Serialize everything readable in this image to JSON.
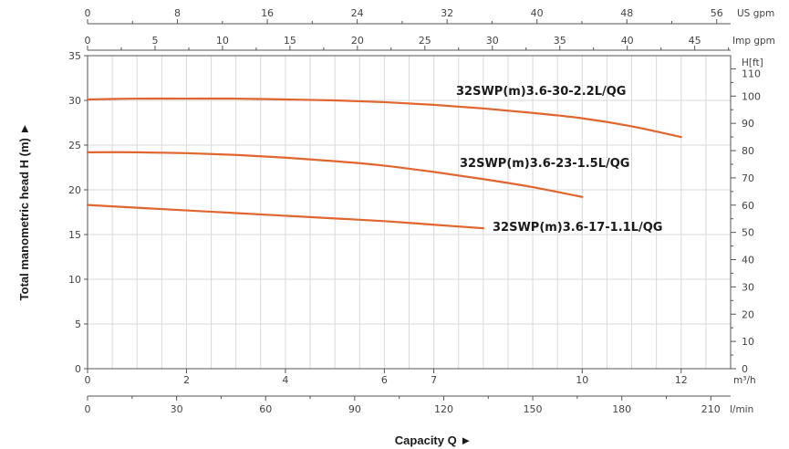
{
  "chart_data": {
    "type": "line",
    "xlabel": "Capacity Q ►",
    "ylabel": "Total manometric head H (m) ►",
    "xlim": [
      0,
      13
    ],
    "ylim": [
      0,
      35
    ],
    "grid": true,
    "x_unit": "m³/h",
    "y_unit_right": "H[ft]",
    "x_ticks": [
      0,
      2,
      4,
      6,
      7,
      10,
      12
    ],
    "y_ticks": [
      0,
      5,
      10,
      15,
      20,
      25,
      30,
      35
    ],
    "ft_ticks": [
      0,
      10,
      20,
      30,
      40,
      50,
      60,
      70,
      80,
      90,
      100,
      110
    ],
    "lmin_unit": "l/min",
    "lmin_ticks": [
      0,
      30,
      60,
      90,
      120,
      150,
      180,
      210
    ],
    "imp_unit": "Imp gpm",
    "imp_ticks": [
      0,
      5,
      10,
      15,
      20,
      25,
      30,
      35,
      40,
      45
    ],
    "us_unit": "US gpm",
    "us_ticks": [
      0,
      8,
      16,
      24,
      32,
      40,
      48,
      56
    ],
    "series": [
      {
        "name": "32SWP(m)3.6-30-2.2L/QG",
        "color": "#e0652f",
        "x": [
          0,
          1,
          2,
          3,
          4,
          5,
          6,
          7,
          8,
          9,
          10,
          11,
          12
        ],
        "y": [
          30.1,
          30.2,
          30.2,
          30.2,
          30.1,
          30.0,
          29.8,
          29.5,
          29.1,
          28.6,
          28.0,
          27.1,
          25.9
        ]
      },
      {
        "name": "32SWP(m)3.6-23-1.5L/QG",
        "color": "#e0652f",
        "x": [
          0,
          1,
          2,
          3,
          4,
          5,
          6,
          7,
          8,
          9,
          10
        ],
        "y": [
          24.2,
          24.2,
          24.1,
          23.9,
          23.6,
          23.2,
          22.7,
          22.0,
          21.2,
          20.3,
          19.2
        ]
      },
      {
        "name": "32SWP(m)3.6-17-1.1L/QG",
        "color": "#e0652f",
        "x": [
          0,
          1,
          2,
          3,
          4,
          5,
          6,
          7,
          8
        ],
        "y": [
          18.3,
          18.0,
          17.7,
          17.4,
          17.1,
          16.8,
          16.5,
          16.1,
          15.7
        ]
      }
    ]
  }
}
